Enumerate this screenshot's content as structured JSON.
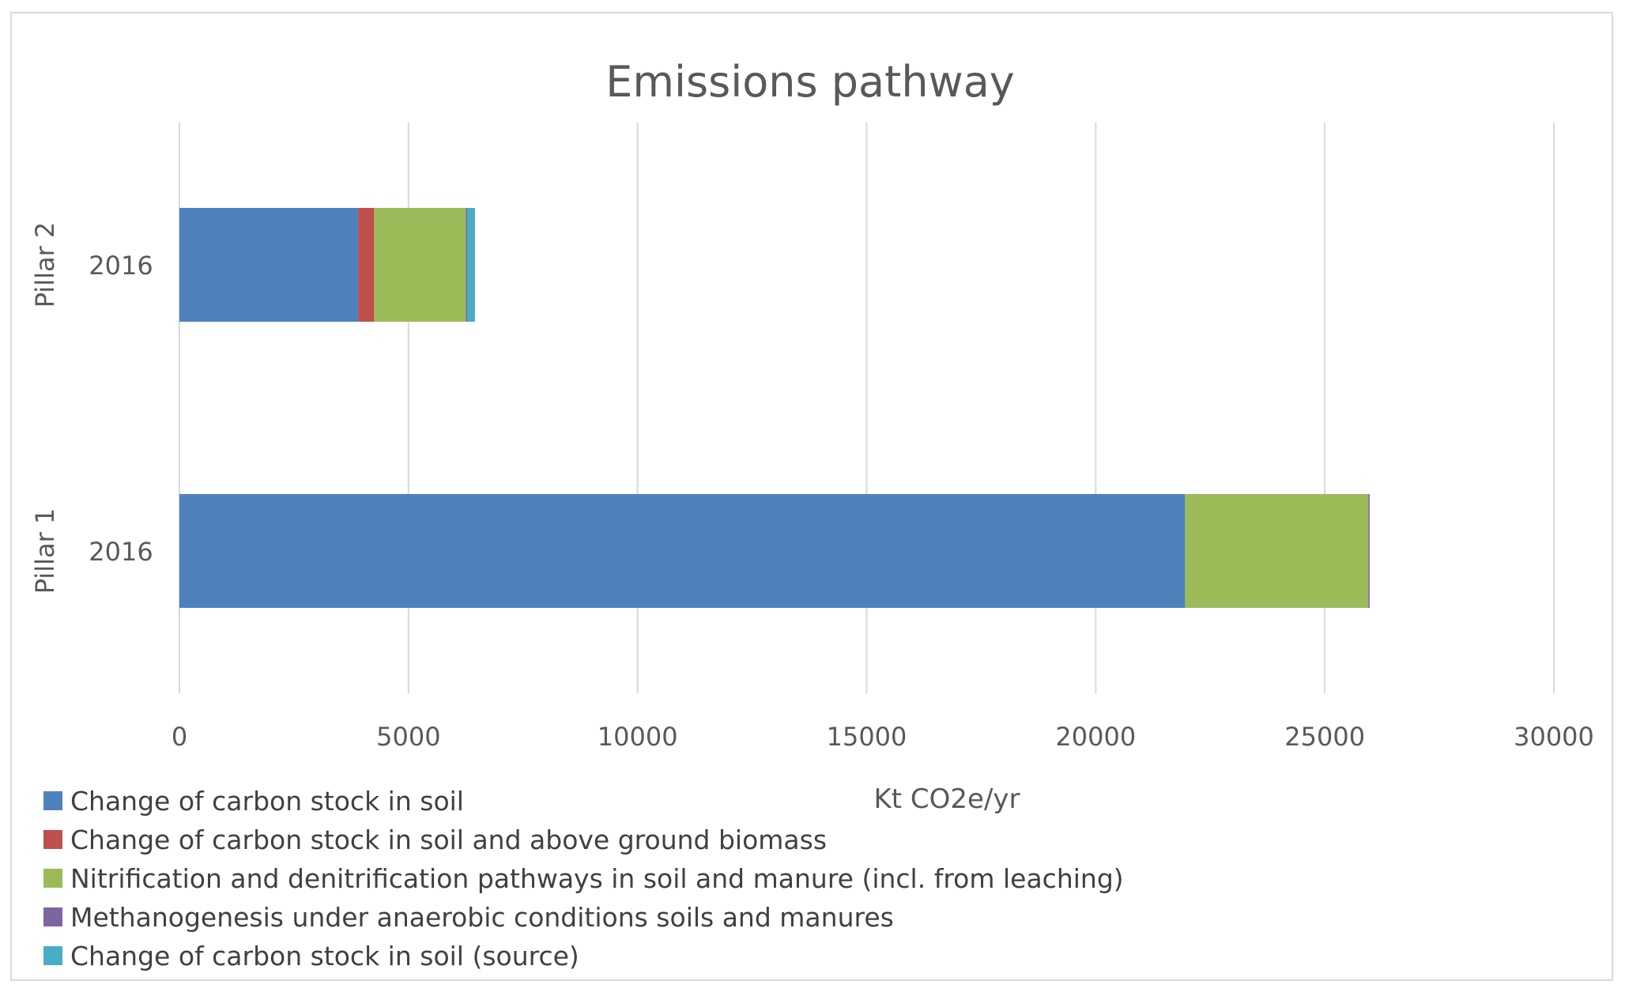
{
  "chart_data": {
    "type": "bar",
    "orientation": "horizontal",
    "stacked": true,
    "title": "Emissions pathway",
    "xlabel": "Kt CO2e/yr",
    "ylabel": "",
    "xlim": [
      0,
      30000
    ],
    "xticks": [
      "0",
      "5000",
      "10000",
      "15000",
      "20000",
      "25000",
      "30000"
    ],
    "grid": true,
    "legend_position": "bottom-left",
    "categories": [
      {
        "group": "Pillar 2",
        "label": "2016"
      },
      {
        "group": "Pillar 1",
        "label": "2016"
      }
    ],
    "series": [
      {
        "name": "Change of carbon stock in soil",
        "color": "#4f81bd",
        "values": [
          3900,
          21950
        ]
      },
      {
        "name": "Change of carbon stock in soil and above ground biomass",
        "color": "#c0504d",
        "values": [
          350,
          0
        ]
      },
      {
        "name": "Nitrification and denitrification pathways in soil and manure (incl. from leaching)",
        "color": "#9bbb59",
        "values": [
          2000,
          4000
        ]
      },
      {
        "name": "Methanogenesis under anaerobic conditions soils and manures",
        "color": "#8064a2",
        "values": [
          30,
          30
        ]
      },
      {
        "name": "Change of carbon stock in soil (source)",
        "color": "#4bacc6",
        "values": [
          170,
          0
        ]
      }
    ]
  }
}
